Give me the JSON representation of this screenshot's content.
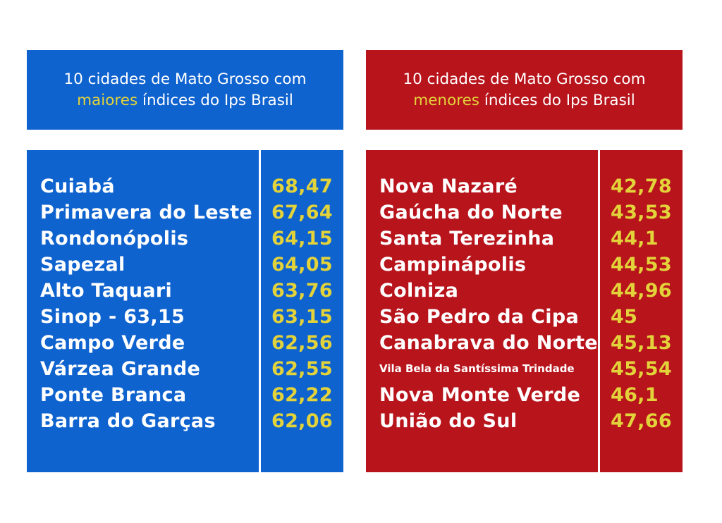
{
  "colors": {
    "blue_panel": "#0f63cf",
    "red_panel": "#b8141c",
    "highlight": "#e3d33a",
    "text": "#ffffff"
  },
  "left": {
    "header": {
      "line1": "10 cidades de Mato Grosso com",
      "highlight": "maiores",
      "line2_rest": " índices do Ips Brasil"
    },
    "rows": [
      {
        "name": "Cuiabá",
        "value": "68,47"
      },
      {
        "name": "Primavera do Leste",
        "value": "67,64"
      },
      {
        "name": "Rondonópolis",
        "value": "64,15"
      },
      {
        "name": "Sapezal",
        "value": "64,05"
      },
      {
        "name": "Alto Taquari",
        "value": "63,76"
      },
      {
        "name": "Sinop - 63,15",
        "value": "63,15"
      },
      {
        "name": "Campo Verde",
        "value": "62,56"
      },
      {
        "name": "Várzea Grande",
        "value": "62,55"
      },
      {
        "name": "Ponte Branca",
        "value": "62,22"
      },
      {
        "name": "Barra do Garças",
        "value": "62,06"
      }
    ]
  },
  "right": {
    "header": {
      "line1": "10 cidades de Mato Grosso com",
      "highlight": "menores",
      "line2_rest": " índices do Ips Brasil"
    },
    "rows": [
      {
        "name": "Nova Nazaré",
        "value": "42,78"
      },
      {
        "name": "Gaúcha do Norte",
        "value": "43,53"
      },
      {
        "name": "Santa Terezinha",
        "value": "44,1"
      },
      {
        "name": "Campinápolis",
        "value": "44,53"
      },
      {
        "name": "Colniza",
        "value": "44,96"
      },
      {
        "name": "São Pedro da Cipa",
        "value": "45"
      },
      {
        "name": "Canabrava do Norte",
        "value": "45,13"
      },
      {
        "name": "Vila Bela da Santíssima Trindade",
        "value": "45,54",
        "small": true
      },
      {
        "name": "Nova Monte Verde",
        "value": "46,1"
      },
      {
        "name": "União do Sul",
        "value": "47,66"
      }
    ]
  }
}
